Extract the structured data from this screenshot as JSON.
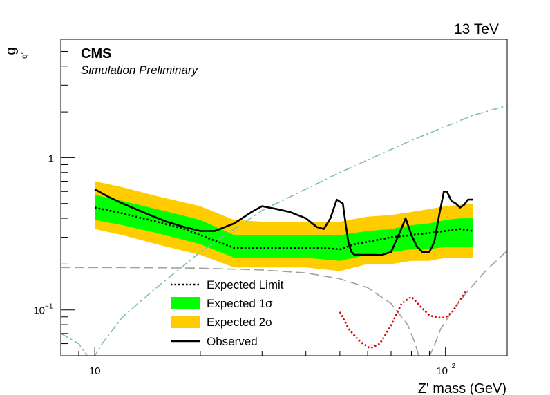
{
  "chart_data": {
    "type": "line",
    "energy_label": "13 TeV",
    "experiment": "CMS",
    "status": "Simulation Preliminary",
    "xlabel": "Z' mass (GeV)",
    "ylabel": "g",
    "ylabel_sub": "q'",
    "x_scale": "log",
    "y_scale": "log",
    "xlim": [
      8,
      150
    ],
    "ylim": [
      0.05,
      6
    ],
    "x_ticks": [
      {
        "value": 10,
        "base": "10",
        "exp": ""
      },
      {
        "value": 100,
        "base": "10",
        "exp": "2"
      }
    ],
    "y_ticks": [
      {
        "value": 0.1,
        "base": "10",
        "exp": "−1"
      },
      {
        "value": 1,
        "base": "1",
        "exp": ""
      }
    ],
    "legend": {
      "position": "lower-center",
      "entries": [
        {
          "label": "Expected Limit",
          "style": "dotted-line",
          "color": "#000000"
        },
        {
          "label": "Expected 1σ",
          "style": "band",
          "color": "#00ff00"
        },
        {
          "label": "Expected 2σ",
          "style": "band",
          "color": "#ffcc00"
        },
        {
          "label": "Observed",
          "style": "solid-line",
          "color": "#000000"
        }
      ]
    },
    "colors": {
      "band_1sigma": "#00ff00",
      "band_2sigma": "#ffcc00",
      "expected": "#000000",
      "observed": "#000000",
      "teal_curve": "#7bbfa5",
      "grey_curve": "#a0a0a0",
      "red_curve": "#dd0000"
    },
    "series": [
      {
        "name": "Expected 2σ",
        "kind": "band",
        "x": [
          10,
          12,
          15,
          20,
          25,
          30,
          40,
          50,
          60,
          70,
          80,
          90,
          100,
          110,
          120
        ],
        "low": [
          0.34,
          0.31,
          0.27,
          0.23,
          0.19,
          0.19,
          0.19,
          0.18,
          0.2,
          0.2,
          0.21,
          0.21,
          0.22,
          0.22,
          0.22
        ],
        "high": [
          0.7,
          0.64,
          0.56,
          0.48,
          0.39,
          0.38,
          0.38,
          0.38,
          0.41,
          0.42,
          0.44,
          0.46,
          0.48,
          0.49,
          0.5
        ]
      },
      {
        "name": "Expected 1σ",
        "kind": "band",
        "x": [
          10,
          12,
          15,
          20,
          25,
          30,
          40,
          50,
          60,
          70,
          80,
          90,
          100,
          110,
          120
        ],
        "low": [
          0.39,
          0.36,
          0.32,
          0.27,
          0.22,
          0.22,
          0.22,
          0.21,
          0.23,
          0.24,
          0.25,
          0.25,
          0.26,
          0.26,
          0.26
        ],
        "high": [
          0.57,
          0.52,
          0.46,
          0.39,
          0.31,
          0.31,
          0.31,
          0.31,
          0.33,
          0.34,
          0.36,
          0.37,
          0.39,
          0.4,
          0.4
        ]
      },
      {
        "name": "Expected Limit",
        "kind": "dotted",
        "x": [
          10,
          12,
          15,
          18,
          20,
          25,
          30,
          35,
          40,
          45,
          50,
          55,
          60,
          70,
          80,
          90,
          100,
          110,
          120
        ],
        "y": [
          0.47,
          0.43,
          0.38,
          0.34,
          0.31,
          0.255,
          0.255,
          0.255,
          0.255,
          0.255,
          0.25,
          0.27,
          0.28,
          0.3,
          0.31,
          0.32,
          0.33,
          0.34,
          0.33
        ]
      },
      {
        "name": "Observed",
        "kind": "solid",
        "x": [
          10,
          11,
          12,
          14,
          16,
          18,
          20,
          22,
          25,
          28,
          30,
          33,
          36,
          40,
          43,
          45,
          47,
          49,
          51,
          52,
          53,
          54,
          55,
          58,
          62,
          66,
          70,
          74,
          77,
          80,
          83,
          86,
          90,
          93,
          96,
          99,
          101,
          104,
          107,
          110,
          113,
          116,
          120
        ],
        "y": [
          0.62,
          0.55,
          0.5,
          0.43,
          0.38,
          0.35,
          0.33,
          0.33,
          0.37,
          0.44,
          0.48,
          0.46,
          0.44,
          0.4,
          0.35,
          0.34,
          0.4,
          0.53,
          0.5,
          0.36,
          0.27,
          0.24,
          0.23,
          0.23,
          0.23,
          0.23,
          0.24,
          0.32,
          0.4,
          0.31,
          0.26,
          0.24,
          0.24,
          0.28,
          0.42,
          0.6,
          0.6,
          0.52,
          0.5,
          0.47,
          0.49,
          0.53,
          0.53
        ]
      },
      {
        "name": "",
        "kind": "dashdot",
        "color": "#7bbfa5",
        "x": [
          8,
          9,
          9.5,
          9.8,
          10,
          10.5,
          12,
          15,
          20,
          30,
          50,
          80,
          120,
          150
        ],
        "y": [
          0.07,
          0.06,
          0.05,
          0.045,
          0.05,
          0.06,
          0.09,
          0.14,
          0.24,
          0.45,
          0.8,
          1.3,
          1.9,
          2.2
        ]
      },
      {
        "name": "",
        "kind": "dashed",
        "color": "#a0a0a0",
        "x": [
          8,
          12,
          20,
          30,
          40,
          50,
          60,
          70,
          78,
          82,
          85,
          88,
          92,
          97,
          105,
          115,
          130,
          150
        ],
        "y": [
          0.19,
          0.19,
          0.188,
          0.183,
          0.175,
          0.16,
          0.14,
          0.11,
          0.08,
          0.06,
          0.045,
          0.045,
          0.055,
          0.075,
          0.1,
          0.13,
          0.18,
          0.245
        ]
      },
      {
        "name": "",
        "kind": "dotted",
        "color": "#dd0000",
        "x": [
          50,
          53,
          57,
          61,
          65,
          70,
          75,
          80,
          85,
          90,
          95,
          100,
          105,
          110,
          115
        ],
        "y": [
          0.097,
          0.075,
          0.062,
          0.056,
          0.06,
          0.079,
          0.11,
          0.122,
          0.105,
          0.092,
          0.089,
          0.089,
          0.098,
          0.115,
          0.135
        ]
      }
    ]
  }
}
